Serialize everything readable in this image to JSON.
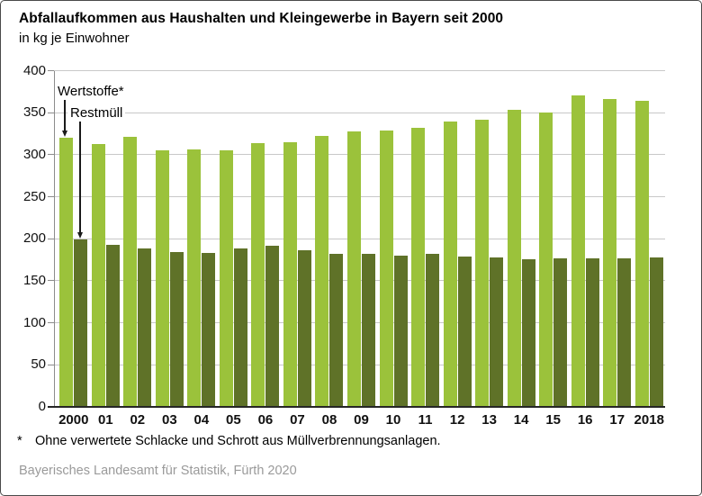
{
  "chart_data": {
    "type": "bar",
    "title": "Abfallaufkommen aus Haushalten und Kleingewerbe in Bayern seit 2000",
    "subtitle": "in kg je Einwohner",
    "unit": "kg je Einwohner",
    "categories": [
      "2000",
      "01",
      "02",
      "03",
      "04",
      "05",
      "06",
      "07",
      "08",
      "09",
      "10",
      "11",
      "12",
      "13",
      "14",
      "15",
      "16",
      "17",
      "2018"
    ],
    "series": [
      {
        "name": "Wertstoffe*",
        "color": "#9bc23b",
        "values": [
          320,
          313,
          321,
          305,
          306,
          305,
          314,
          315,
          322,
          328,
          329,
          332,
          340,
          342,
          353,
          350,
          371,
          366,
          364
        ]
      },
      {
        "name": "Restmüll",
        "color": "#5f7228",
        "values": [
          199,
          193,
          189,
          184,
          183,
          189,
          192,
          186,
          182,
          182,
          180,
          182,
          179,
          178,
          176,
          177,
          177,
          177,
          178
        ]
      }
    ],
    "ylim": [
      0,
      400
    ],
    "ytick_step": 50,
    "grid": true,
    "legend_position": "annotation labels with arrows at top-left pointing to the first pair of bars"
  },
  "footnote": {
    "marker": "*",
    "text": "Ohne verwertete Schlacke und Schrott aus Müllverbrennungsanlagen."
  },
  "source": "Bayerisches Landesamt für Statistik, Fürth 2020"
}
